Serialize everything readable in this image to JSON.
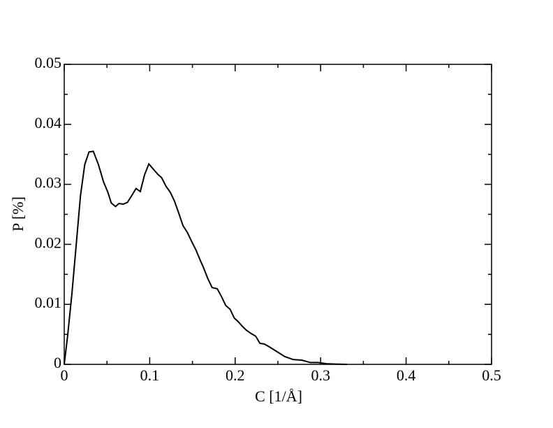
{
  "chart_data": {
    "type": "line",
    "x_label": "C [1/Å]",
    "y_label": "P [%]",
    "xlim": [
      0,
      0.5
    ],
    "xticks": [
      0,
      0.1,
      0.2,
      0.3,
      0.4,
      0.5
    ],
    "ylim": [
      0,
      0.05
    ],
    "yticks": [
      0,
      0.01,
      0.02,
      0.03,
      0.04,
      0.05
    ],
    "series": [
      {
        "color": "#000000",
        "x": [
          0,
          0.004,
          0.009,
          0.014,
          0.019,
          0.024,
          0.029,
          0.034,
          0.04,
          0.046,
          0.051,
          0.055,
          0.06,
          0.064,
          0.069,
          0.074,
          0.078,
          0.084,
          0.089,
          0.094,
          0.099,
          0.105,
          0.11,
          0.114,
          0.119,
          0.124,
          0.129,
          0.134,
          0.139,
          0.144,
          0.149,
          0.154,
          0.159,
          0.163,
          0.168,
          0.173,
          0.179,
          0.184,
          0.189,
          0.194,
          0.199,
          0.203,
          0.208,
          0.213,
          0.218,
          0.224,
          0.229,
          0.234,
          0.239,
          0.248,
          0.258,
          0.268,
          0.278,
          0.288,
          0.297,
          0.307,
          0.317,
          0.331
        ],
        "values": [
          0,
          0.0048,
          0.0118,
          0.0199,
          0.0281,
          0.0333,
          0.0354,
          0.0355,
          0.0333,
          0.0304,
          0.0287,
          0.0269,
          0.0263,
          0.0268,
          0.0267,
          0.027,
          0.0279,
          0.0293,
          0.0288,
          0.0316,
          0.0334,
          0.0324,
          0.0316,
          0.0311,
          0.0297,
          0.0287,
          0.0272,
          0.0252,
          0.0231,
          0.022,
          0.0205,
          0.0191,
          0.0174,
          0.0161,
          0.0143,
          0.0128,
          0.0126,
          0.0113,
          0.0098,
          0.0092,
          0.0077,
          0.0072,
          0.0064,
          0.0057,
          0.0052,
          0.0047,
          0.0035,
          0.0034,
          0.003,
          0.0022,
          0.0013,
          0.0008,
          0.0007,
          0.0003,
          0.0003,
          0.0001,
          5e-05,
          0
        ]
      }
    ]
  }
}
